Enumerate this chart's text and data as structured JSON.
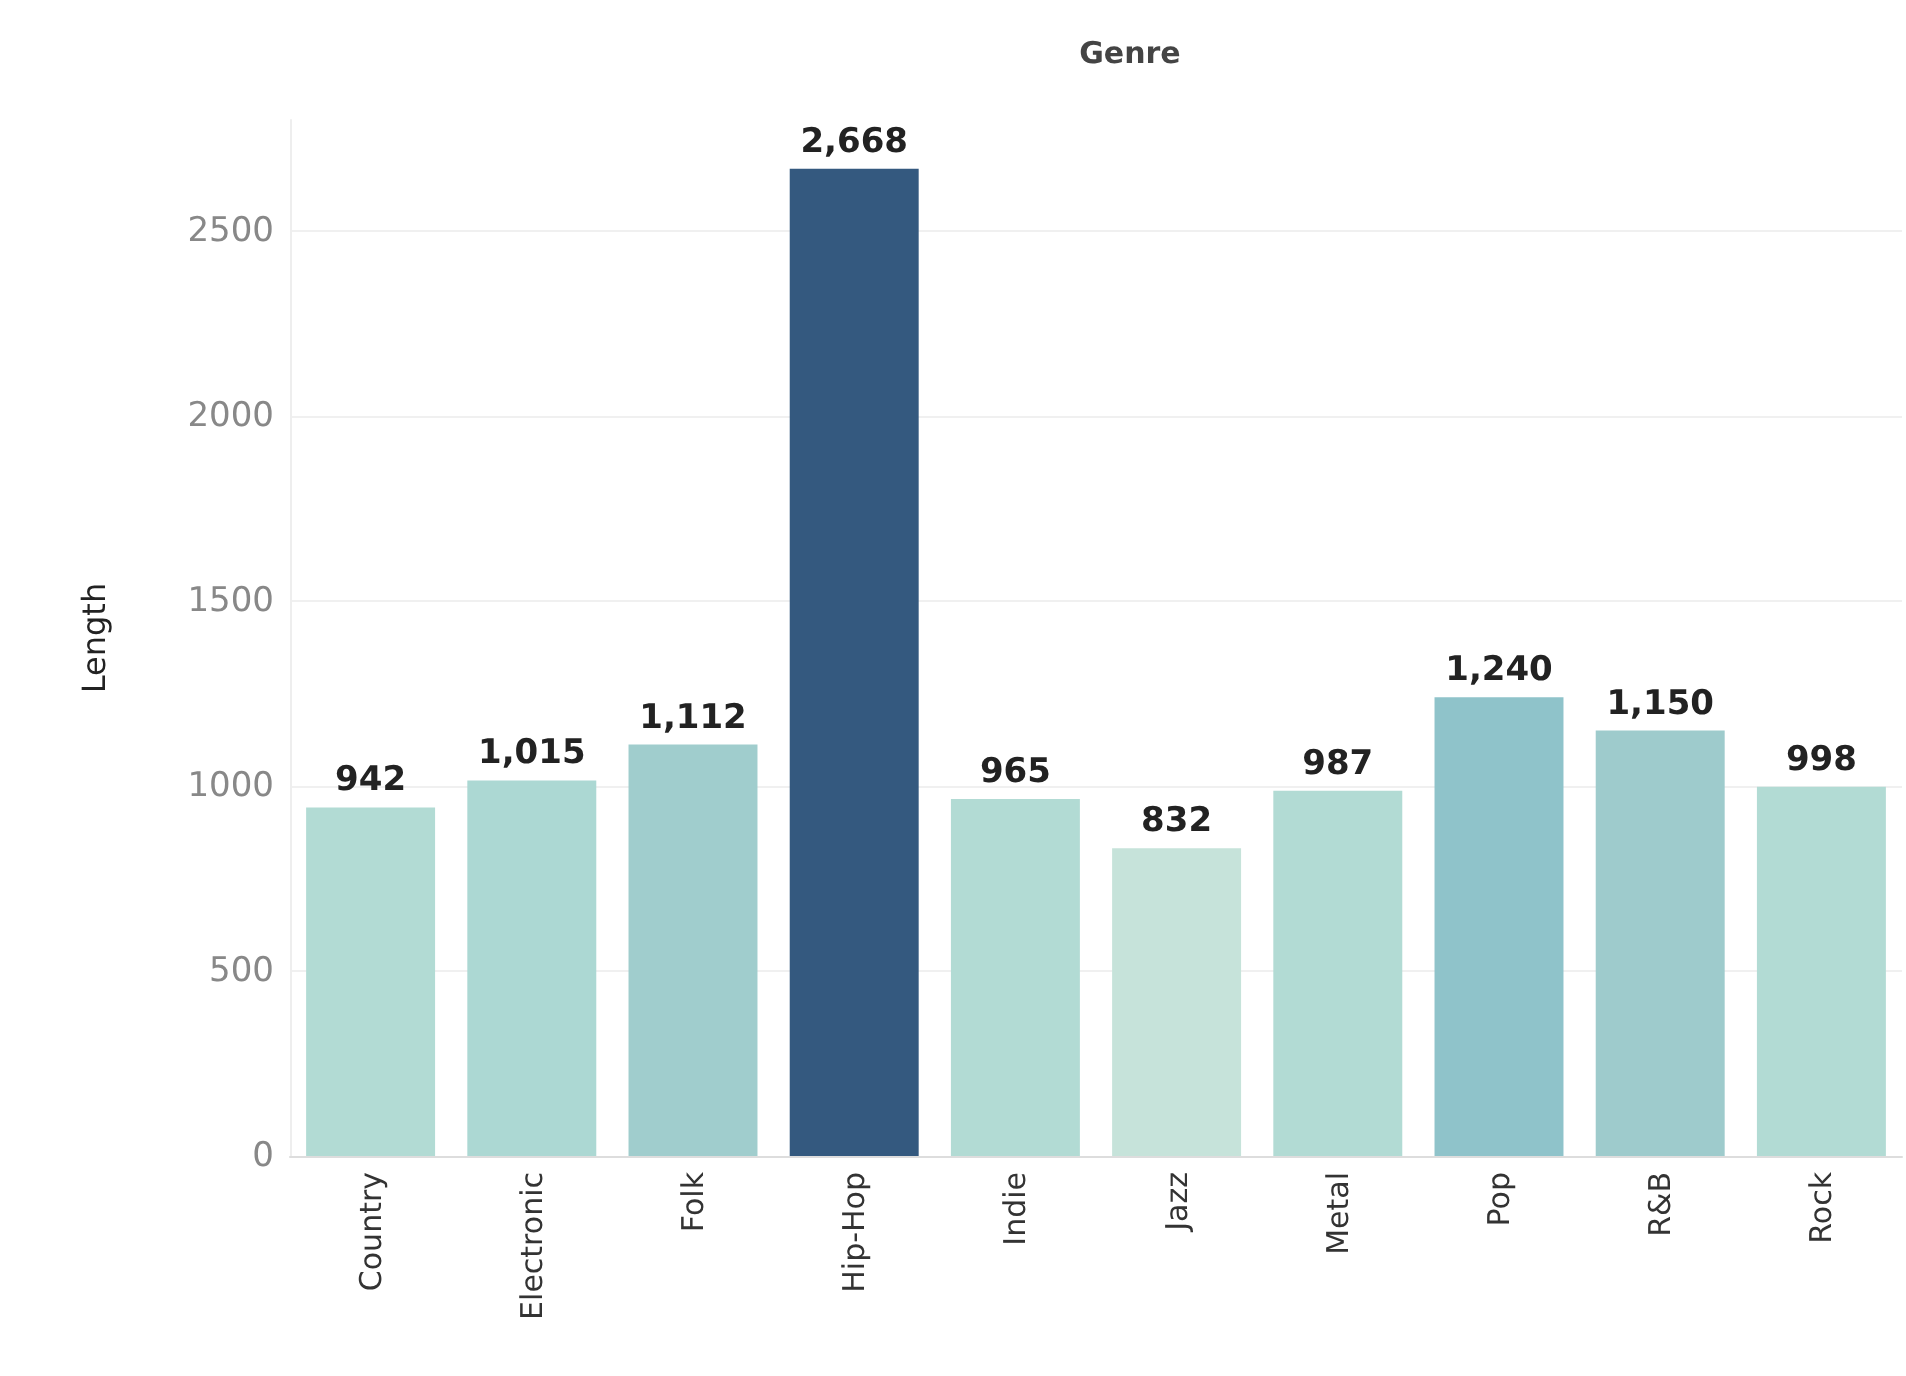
{
  "chart_data": {
    "type": "bar",
    "title": "Genre",
    "ylabel": "Length",
    "categories": [
      "Country",
      "Electronic",
      "Folk",
      "Hip-Hop",
      "Indie",
      "Jazz",
      "Metal",
      "Pop",
      "R&B",
      "Rock"
    ],
    "values": [
      942,
      1015,
      1112,
      2668,
      965,
      832,
      987,
      1240,
      1150,
      998
    ],
    "value_labels": [
      "942",
      "1,015",
      "1,112",
      "2,668",
      "965",
      "832",
      "987",
      "1,240",
      "1,150",
      "998"
    ],
    "colors": [
      "#b2dbd4",
      "#acd8d3",
      "#a0cdcd",
      "#34597f",
      "#b2dbd4",
      "#c6e3da",
      "#b2dbd4",
      "#8fc3ca",
      "#9ecbcc",
      "#b2dbd4"
    ],
    "ylim": [
      0,
      2800
    ],
    "yticks": [
      0,
      500,
      1000,
      1500,
      2000,
      2500
    ],
    "grid": "y"
  }
}
